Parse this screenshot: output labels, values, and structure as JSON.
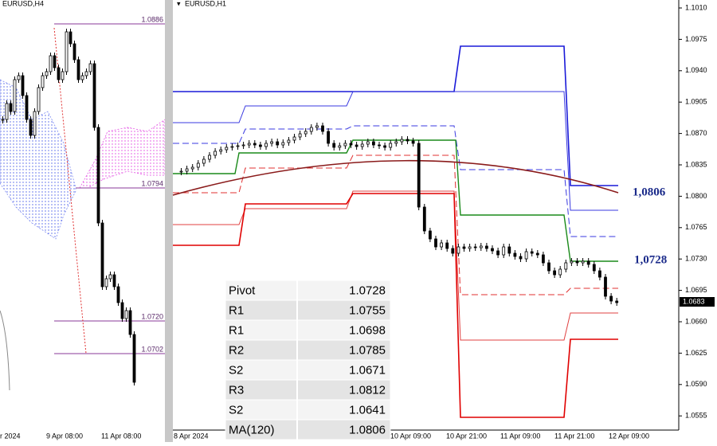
{
  "left_panel": {
    "symbol": "EURUSD,H4",
    "level_labels": [
      "1.0886",
      "1.0794",
      "1.0720",
      "1.0702"
    ],
    "time_labels": [
      "r 2024",
      "9 Apr 08:00",
      "11 Apr 08:00"
    ]
  },
  "right_panel": {
    "symbol": "EURUSD,H1",
    "price_axis": [
      "1.1010",
      "1.0975",
      "1.0940",
      "1.0905",
      "1.0870",
      "1.0835",
      "1.0800",
      "1.0765",
      "1.0730",
      "1.0695",
      "1.0660",
      "1.0625",
      "1.0590",
      "1.0555"
    ],
    "current_price": "1.0683",
    "annotations": [
      "1,0806",
      "1,0728"
    ],
    "time_labels": [
      "8 Apr 2024",
      "10 Apr 09:00",
      "10 Apr 21:00",
      "11 Apr 09:00",
      "11 Apr 21:00",
      "12 Apr 09:00"
    ]
  },
  "table": {
    "rows": [
      [
        "Pivot",
        "1.0728"
      ],
      [
        "R1",
        "1.0755"
      ],
      [
        "R1",
        "1.0698"
      ],
      [
        "R2",
        "1.0785"
      ],
      [
        "S2",
        "1.0671"
      ],
      [
        "R3",
        "1.0812"
      ],
      [
        "S2",
        "1.0641"
      ],
      [
        "MA(120)",
        "1.0806"
      ]
    ]
  }
}
